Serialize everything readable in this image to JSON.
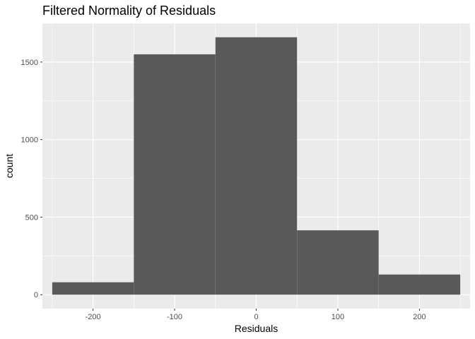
{
  "chart_data": {
    "type": "bar",
    "title": "Filtered Normality of Residuals",
    "xlabel": "Residuals",
    "ylabel": "count",
    "xlim": [
      -262,
      262
    ],
    "ylim": [
      -90,
      1750
    ],
    "x_ticks": [
      -200,
      -100,
      0,
      100,
      200
    ],
    "x_tick_labels": [
      "-200",
      "-100",
      "0",
      "100",
      "200"
    ],
    "y_ticks": [
      0,
      500,
      1000,
      1500
    ],
    "y_tick_labels": [
      "0",
      "500",
      "1000",
      "1500"
    ],
    "bins": [
      {
        "x_min": -250,
        "x_max": -150,
        "count": 80
      },
      {
        "x_min": -150,
        "x_max": -50,
        "count": 1550
      },
      {
        "x_min": -50,
        "x_max": 50,
        "count": 1660
      },
      {
        "x_min": 50,
        "x_max": 150,
        "count": 415
      },
      {
        "x_min": 150,
        "x_max": 250,
        "count": 130
      }
    ],
    "grid": true,
    "colors": {
      "panel_background": "#ebebeb",
      "grid": "#ffffff",
      "bar_fill": "#595959"
    }
  }
}
